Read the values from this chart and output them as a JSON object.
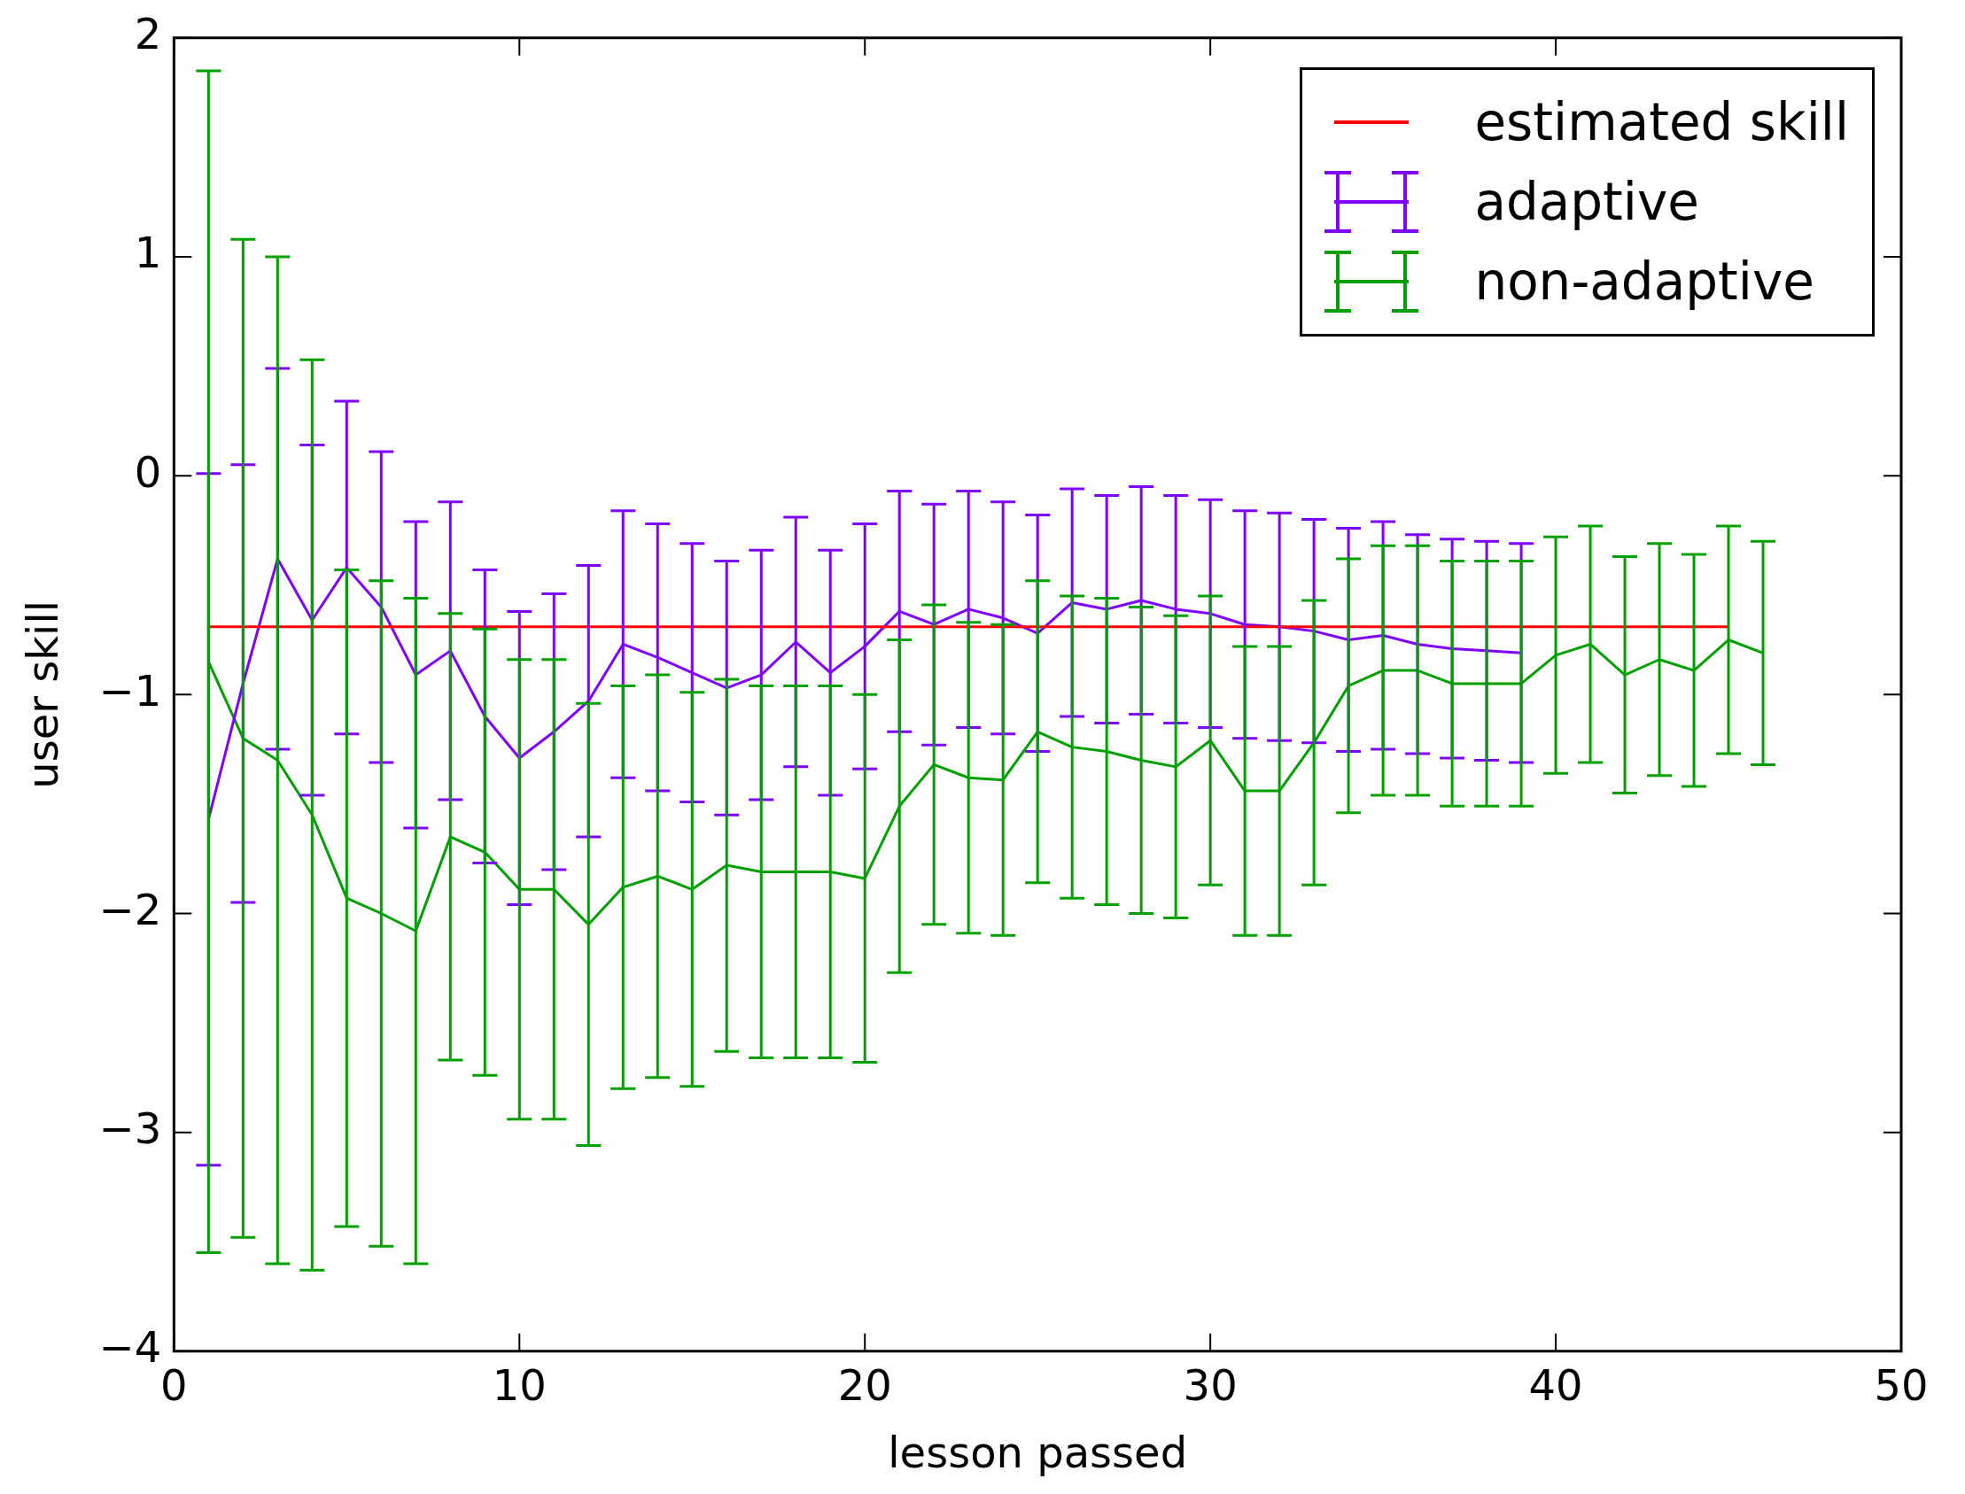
{
  "chart_data": {
    "type": "line",
    "xlabel": "lesson passed",
    "ylabel": "user skill",
    "xlim": [
      0,
      50
    ],
    "xticks": [
      0,
      10,
      20,
      30,
      40,
      50
    ],
    "ylim": [
      -4,
      2
    ],
    "yticks": [
      {
        "value": -4,
        "label": "−4"
      },
      {
        "value": -3,
        "label": "−3"
      },
      {
        "value": -2,
        "label": "−2"
      },
      {
        "value": -1,
        "label": "−1"
      },
      0,
      1,
      2
    ],
    "grid": false,
    "legend": "top right",
    "marker": "none",
    "line_style": "solid",
    "series": [
      {
        "name": "estimated skill",
        "color": "#ff0000",
        "x": [
          1,
          45
        ],
        "values": [
          -0.69,
          -0.69
        ]
      },
      {
        "name": "adaptive",
        "color": "#7f00ff",
        "x": [
          1,
          2,
          3,
          4,
          5,
          6,
          7,
          8,
          9,
          10,
          11,
          12,
          13,
          14,
          15,
          16,
          17,
          18,
          19,
          20,
          21,
          22,
          23,
          24,
          25,
          26,
          27,
          28,
          29,
          30,
          31,
          32,
          33,
          34,
          35,
          36,
          37,
          38,
          39
        ],
        "values": [
          -1.57,
          -0.95,
          -0.38,
          -0.66,
          -0.42,
          -0.6,
          -0.91,
          -0.8,
          -1.1,
          -1.29,
          -1.17,
          -1.03,
          -0.77,
          -0.83,
          -0.9,
          -0.97,
          -0.91,
          -0.76,
          -0.9,
          -0.78,
          -0.62,
          -0.68,
          -0.61,
          -0.65,
          -0.72,
          -0.58,
          -0.61,
          -0.57,
          -0.61,
          -0.63,
          -0.68,
          -0.69,
          -0.71,
          -0.75,
          -0.73,
          -0.77,
          -0.79,
          -0.8,
          -0.81
        ],
        "errors": [
          1.58,
          1.0,
          0.87,
          0.8,
          0.76,
          0.71,
          0.7,
          0.68,
          0.67,
          0.67,
          0.63,
          0.62,
          0.61,
          0.61,
          0.59,
          0.58,
          0.57,
          0.57,
          0.56,
          0.56,
          0.55,
          0.55,
          0.54,
          0.53,
          0.54,
          0.52,
          0.52,
          0.52,
          0.52,
          0.52,
          0.52,
          0.52,
          0.51,
          0.51,
          0.52,
          0.5,
          0.5,
          0.5,
          0.5
        ]
      },
      {
        "name": "non-adaptive",
        "color": "#00a000",
        "x": [
          1,
          2,
          3,
          4,
          5,
          6,
          7,
          8,
          9,
          10,
          11,
          12,
          13,
          14,
          15,
          16,
          17,
          18,
          19,
          20,
          21,
          22,
          23,
          24,
          25,
          26,
          27,
          28,
          29,
          30,
          31,
          32,
          33,
          34,
          35,
          36,
          37,
          38,
          39,
          40,
          41,
          42,
          43,
          44,
          45,
          46
        ],
        "values": [
          -0.85,
          -1.2,
          -1.3,
          -1.55,
          -1.93,
          -2.0,
          -2.08,
          -1.65,
          -1.72,
          -1.89,
          -1.89,
          -2.05,
          -1.88,
          -1.83,
          -1.89,
          -1.78,
          -1.81,
          -1.81,
          -1.81,
          -1.84,
          -1.51,
          -1.32,
          -1.38,
          -1.39,
          -1.17,
          -1.24,
          -1.26,
          -1.3,
          -1.33,
          -1.21,
          -1.44,
          -1.44,
          -1.22,
          -0.96,
          -0.89,
          -0.89,
          -0.95,
          -0.95,
          -0.95,
          -0.82,
          -0.77,
          -0.91,
          -0.84,
          -0.89,
          -0.75,
          -0.81
        ],
        "errors": [
          2.7,
          2.28,
          2.3,
          2.08,
          1.5,
          1.52,
          1.52,
          1.02,
          1.02,
          1.05,
          1.05,
          1.01,
          0.92,
          0.92,
          0.9,
          0.85,
          0.85,
          0.85,
          0.85,
          0.84,
          0.76,
          0.73,
          0.71,
          0.71,
          0.69,
          0.69,
          0.7,
          0.7,
          0.69,
          0.66,
          0.66,
          0.66,
          0.65,
          0.58,
          0.57,
          0.57,
          0.56,
          0.56,
          0.56,
          0.54,
          0.54,
          0.54,
          0.53,
          0.53,
          0.52,
          0.51
        ]
      }
    ]
  }
}
